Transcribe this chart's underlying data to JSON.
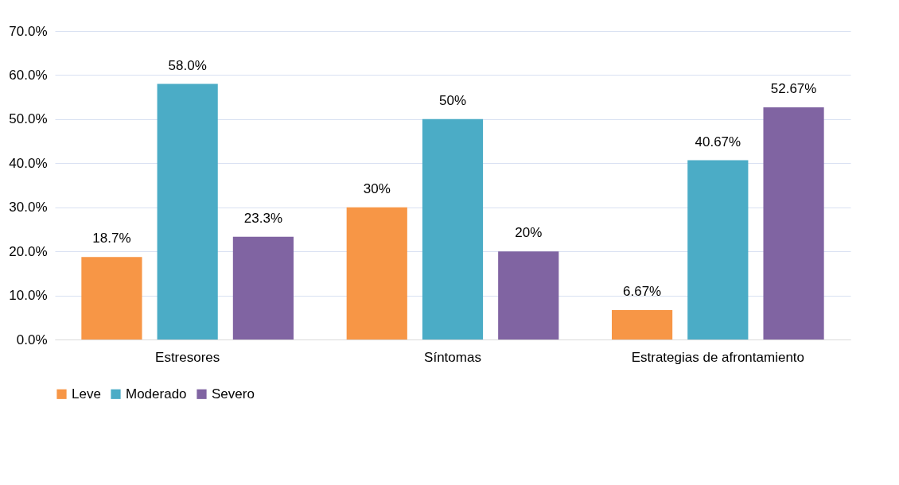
{
  "chart_data": {
    "type": "bar",
    "categories": [
      "Estresores",
      "Síntomas",
      "Estrategias de afrontamiento"
    ],
    "series": [
      {
        "name": "Leve",
        "color": "#f79646",
        "values": [
          18.7,
          30,
          6.67
        ],
        "value_labels": [
          "18.7%",
          "30%",
          "6.67%"
        ]
      },
      {
        "name": "Moderado",
        "color": "#4bacc6",
        "values": [
          58.0,
          50,
          40.67
        ],
        "value_labels": [
          "58.0%",
          "50%",
          "40.67%"
        ]
      },
      {
        "name": "Severo",
        "color": "#8064a2",
        "values": [
          23.3,
          20,
          52.67
        ],
        "value_labels": [
          "23.3%",
          "20%",
          "52.67%"
        ]
      }
    ],
    "ylim": [
      0,
      70
    ],
    "yticks": [
      {
        "value": 0,
        "label": "0.0%"
      },
      {
        "value": 10,
        "label": "10.0%"
      },
      {
        "value": 20,
        "label": "20.0%"
      },
      {
        "value": 30,
        "label": "30.0%"
      },
      {
        "value": 40,
        "label": "40.0%"
      },
      {
        "value": 50,
        "label": "50.0%"
      },
      {
        "value": 60,
        "label": "60.0%"
      },
      {
        "value": 70,
        "label": "70.0%"
      }
    ],
    "grid": "y",
    "legend": "bottom"
  }
}
